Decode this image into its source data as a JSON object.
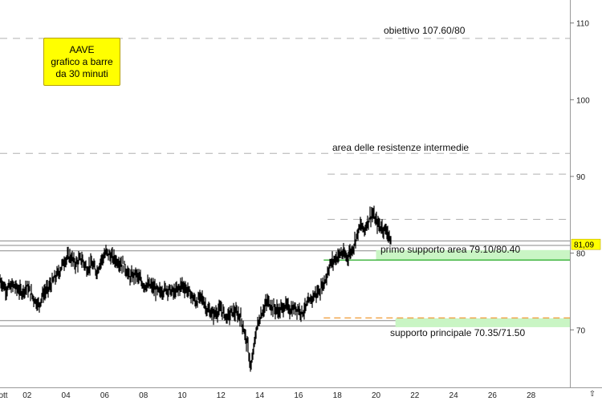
{
  "title_box": {
    "line1": "AAVE",
    "line2": "grafico a barre",
    "line3": "da 30 minuti"
  },
  "chart_data": {
    "type": "bar",
    "bar_kind": "OHLC",
    "timeframe": "30 min",
    "x_ticks": [
      "ott",
      "02",
      "04",
      "06",
      "08",
      "10",
      "12",
      "14",
      "16",
      "18",
      "20",
      "22",
      "24",
      "26",
      "28"
    ],
    "x_range": [
      0.6,
      30.0
    ],
    "y_ticks": [
      70,
      80,
      90,
      100,
      110
    ],
    "ylim": [
      62.5,
      113.0
    ],
    "last_price": "81,09",
    "last_price_value": 81.09,
    "price_path": [
      [
        0.6,
        76.5
      ],
      [
        0.9,
        75.3
      ],
      [
        1.3,
        75.8
      ],
      [
        1.7,
        74.9
      ],
      [
        2.0,
        75.6
      ],
      [
        2.3,
        74.3
      ],
      [
        2.6,
        73.2
      ],
      [
        2.8,
        74.6
      ],
      [
        3.1,
        75.4
      ],
      [
        3.4,
        76.6
      ],
      [
        3.7,
        77.8
      ],
      [
        3.9,
        79.0
      ],
      [
        4.2,
        79.6
      ],
      [
        4.5,
        78.6
      ],
      [
        4.8,
        79.3
      ],
      [
        5.1,
        77.9
      ],
      [
        5.3,
        78.6
      ],
      [
        5.6,
        77.6
      ],
      [
        5.8,
        79.0
      ],
      [
        6.1,
        80.1
      ],
      [
        6.4,
        79.4
      ],
      [
        6.7,
        78.9
      ],
      [
        7.0,
        78.4
      ],
      [
        7.3,
        76.8
      ],
      [
        7.6,
        77.3
      ],
      [
        8.0,
        75.9
      ],
      [
        8.4,
        75.7
      ],
      [
        8.8,
        74.9
      ],
      [
        9.2,
        75.4
      ],
      [
        9.6,
        74.8
      ],
      [
        10.0,
        75.9
      ],
      [
        10.4,
        74.8
      ],
      [
        10.7,
        73.6
      ],
      [
        11.0,
        74.3
      ],
      [
        11.3,
        72.6
      ],
      [
        11.6,
        72.0
      ],
      [
        12.0,
        72.7
      ],
      [
        12.3,
        71.6
      ],
      [
        12.6,
        72.4
      ],
      [
        13.0,
        71.8
      ],
      [
        13.2,
        69.8
      ],
      [
        13.4,
        67.6
      ],
      [
        13.55,
        64.8
      ],
      [
        13.7,
        67.8
      ],
      [
        13.85,
        70.3
      ],
      [
        14.1,
        72.2
      ],
      [
        14.4,
        73.7
      ],
      [
        14.7,
        72.9
      ],
      [
        15.0,
        72.4
      ],
      [
        15.3,
        73.2
      ],
      [
        15.6,
        72.6
      ],
      [
        15.9,
        72.9
      ],
      [
        16.2,
        72.3
      ],
      [
        16.5,
        73.4
      ],
      [
        16.8,
        74.5
      ],
      [
        17.1,
        75.1
      ],
      [
        17.4,
        76.6
      ],
      [
        17.6,
        78.4
      ],
      [
        17.9,
        79.3
      ],
      [
        18.2,
        80.0
      ],
      [
        18.5,
        79.5
      ],
      [
        18.8,
        80.6
      ],
      [
        19.0,
        82.3
      ],
      [
        19.2,
        83.6
      ],
      [
        19.4,
        83.0
      ],
      [
        19.6,
        84.3
      ],
      [
        19.8,
        85.2
      ],
      [
        20.0,
        84.1
      ],
      [
        20.2,
        83.5
      ],
      [
        20.4,
        83.2
      ],
      [
        20.6,
        82.8
      ],
      [
        20.8,
        81.1
      ]
    ],
    "bar_jitter": 0.9,
    "horizontal_levels": [
      {
        "y": 108.0,
        "style": "dashed",
        "label": "obiettivo 107.60/80",
        "x_from": 0.6,
        "x_to": 30.0
      },
      {
        "y": 93.0,
        "style": "dashed",
        "label": "area delle resistenze intermedie",
        "x_from": 0.6,
        "x_to": 30.0
      },
      {
        "y": 90.3,
        "style": "dashed",
        "label": "",
        "x_from": 17.5,
        "x_to": 30.0
      },
      {
        "y": 84.4,
        "style": "dashed",
        "label": "",
        "x_from": 17.5,
        "x_to": 30.0
      },
      {
        "y": 81.6,
        "style": "solid",
        "label": "",
        "x_from": 0.6,
        "x_to": 30.0
      },
      {
        "y": 81.0,
        "style": "solid",
        "label": "",
        "x_from": 0.6,
        "x_to": 30.0
      },
      {
        "y": 80.3,
        "style": "solid",
        "label": "",
        "x_from": 0.6,
        "x_to": 30.0
      },
      {
        "y": 71.2,
        "style": "solid",
        "label": "",
        "x_from": 0.6,
        "x_to": 30.0
      },
      {
        "y": 70.5,
        "style": "solid",
        "label": "",
        "x_from": 0.6,
        "x_to": 30.0
      }
    ],
    "support_zones": [
      {
        "label": "primo supporto area 79.10/80.40",
        "y_low": 79.1,
        "y_high": 80.4,
        "x_from": 20.0,
        "x_to": 30.0,
        "color": "#c9f5c4",
        "accent_line_y": 79.1,
        "accent_color": "#22aa22",
        "accent_x_from": 17.3
      },
      {
        "label": "supporto principale 70.35/71.50",
        "y_low": 70.35,
        "y_high": 71.5,
        "x_from": 21.0,
        "x_to": 30.0,
        "color": "#c9f5c4",
        "accent_line_y": 71.55,
        "accent_color": "#f0a040",
        "accent_x_from": 17.3
      }
    ],
    "colors": {
      "bars": "#000000",
      "grid_dash": "#b0b0b0",
      "level_line": "#888888",
      "zone": "#c9f5c4",
      "last_price_box": "#ffff00"
    },
    "grid": false
  }
}
